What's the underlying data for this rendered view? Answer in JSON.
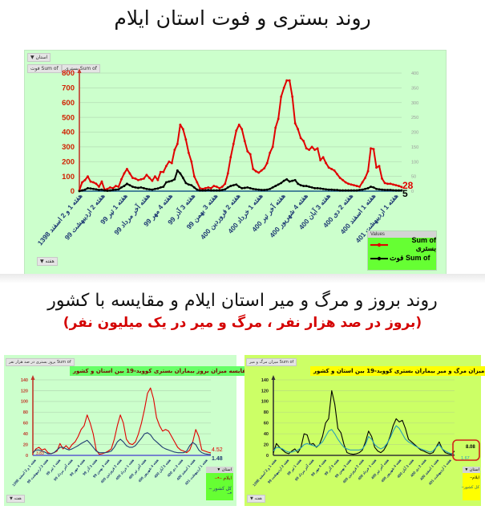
{
  "page": {
    "title_top": "روند بستری و فوت استان ایلام",
    "title_bottom": "روند بروز و مرگ و میر استان ایلام و مقایسه با کشور",
    "subtitle_bottom": "(بروز در صد هزار نفر ، مرگ و میر در یک میلیون نفر)"
  },
  "top_chart": {
    "filter_button": "استان ▼",
    "value_buttons": [
      "Sum of فوت",
      "Sum of بستری"
    ],
    "axis_button": "هفته ▼",
    "legend_header": "Values",
    "legend": [
      "Sum of بستری",
      "Sum of فوت"
    ],
    "end_labels": {
      "hospitalized": "28",
      "deaths": "5"
    }
  },
  "bottom_left_chart": {
    "pivot_button": "Sum of بروز بستری در صد هزار نفر",
    "title": "مقایسه میزان بروز بیماران بستری کووید-19 بین استان و کشور",
    "legend_header": "استان ▼",
    "legend": [
      "ایلام",
      "کل کشور"
    ],
    "axis_button": "هفته ▼",
    "end_labels": {
      "province": "4.52",
      "country": "1.48",
      "start": "3.83"
    }
  },
  "bottom_right_chart": {
    "pivot_button": "Sum of میزان مرگ و میر",
    "title": "مقایسه میزان مرگ و میر بیماران بستری کووید-19 بین استان و کشور",
    "legend_header": "استان ▼",
    "legend": [
      "ایلام",
      "کل کشور"
    ],
    "axis_button": "هفته ▼",
    "end_labels": {
      "province": "8.08",
      "country": "1.67"
    }
  },
  "colors": {
    "red": "#e00000",
    "black": "#000000",
    "navy": "#1f3b73",
    "teal": "#2aa0b8",
    "panel_green": "#ccffcc",
    "panel_yellow": "#ccff66",
    "title_box_green": "#66ff66",
    "title_box_yellow": "#ffff00"
  },
  "chart_data": [
    {
      "type": "line",
      "title": "روند بستری و فوت استان ایلام",
      "xlabel": "هفته",
      "ylabel": "",
      "ylim": [
        0,
        800
      ],
      "y2lim": [
        0,
        400
      ],
      "y_ticks": [
        0,
        100,
        200,
        300,
        400,
        500,
        600,
        700,
        800
      ],
      "y2_ticks": [
        0,
        50,
        100,
        150,
        200,
        250,
        300,
        350,
        400
      ],
      "grid": true,
      "legend_position": "bottom-right",
      "categories": [
        "هفته 1 و 2 اسفند 1398",
        "هفته 2 اردیبهشت 99",
        "هفته 1 تیر 99",
        "هفته آخر مرداد 99",
        "هفته 4 مهر 99",
        "هفته 3 آذر 99",
        "هفته 3 بهمن 99",
        "هفته 2 فروردین 400",
        "هفته 1 خرداد 400",
        "هفته آخر تیر 400",
        "هفته 4 شهریور 400",
        "هفته 3 آبان 400",
        "هفته 2 دی 400",
        "هفته 1 اسفند 400",
        "هفته 1 اردیبهشت 401"
      ],
      "series": [
        {
          "name": "Sum of بستری",
          "color": "#e00000",
          "values": [
            5,
            60,
            75,
            100,
            65,
            60,
            50,
            30,
            65,
            10,
            15,
            25,
            20,
            35,
            30,
            80,
            120,
            150,
            120,
            90,
            85,
            75,
            80,
            85,
            110,
            90,
            70,
            100,
            75,
            130,
            130,
            170,
            200,
            190,
            280,
            320,
            450,
            420,
            350,
            260,
            200,
            100,
            60,
            20,
            15,
            20,
            25,
            20,
            35,
            30,
            20,
            30,
            50,
            120,
            230,
            320,
            410,
            450,
            420,
            340,
            270,
            250,
            150,
            135,
            125,
            140,
            155,
            190,
            260,
            300,
            430,
            490,
            640,
            700,
            750,
            750,
            640,
            460,
            420,
            360,
            340,
            290,
            280,
            300,
            280,
            290,
            210,
            230,
            190,
            160,
            150,
            140,
            115,
            90,
            75,
            60,
            50,
            45,
            40,
            35,
            30,
            60,
            90,
            135,
            290,
            285,
            160,
            170,
            85,
            55,
            50,
            50,
            45,
            40,
            35,
            28
          ]
        },
        {
          "name": "Sum of فوت",
          "color": "#000000",
          "values": [
            0,
            5,
            10,
            20,
            18,
            15,
            12,
            8,
            10,
            5,
            3,
            5,
            8,
            10,
            12,
            25,
            35,
            50,
            40,
            30,
            25,
            22,
            25,
            20,
            15,
            12,
            10,
            15,
            18,
            25,
            30,
            60,
            65,
            70,
            80,
            140,
            120,
            90,
            55,
            45,
            40,
            25,
            10,
            5,
            5,
            5,
            8,
            5,
            5,
            5,
            5,
            8,
            12,
            25,
            35,
            40,
            45,
            30,
            20,
            22,
            25,
            20,
            15,
            12,
            10,
            8,
            8,
            10,
            15,
            25,
            35,
            45,
            55,
            70,
            80,
            65,
            70,
            75,
            50,
            40,
            35,
            35,
            30,
            25,
            20,
            20,
            18,
            15,
            12,
            10,
            10,
            8,
            8,
            5,
            5,
            5,
            5,
            5,
            5,
            5,
            8,
            10,
            15,
            20,
            30,
            25,
            15,
            12,
            10,
            8,
            8,
            8,
            6,
            5,
            5,
            5
          ]
        }
      ]
    },
    {
      "type": "line",
      "title": "مقایسه میزان بروز بیماران بستری کووید-19 بین استان و کشور",
      "ylim": [
        0,
        140
      ],
      "y_ticks": [
        0,
        20,
        40,
        60,
        80,
        100,
        120,
        140
      ],
      "grid": true,
      "legend_position": "bottom-right",
      "categories": [
        "هفته 1 و 2 اسفند 1398",
        "هفته 2 اردیبهشت 99",
        "هفته 1 تیر 99",
        "هفته آخر مرداد 99",
        "هفته 4 مهر 99",
        "هفته 3 آذر 99",
        "هفته 3 بهمن 99",
        "هفته 2 فروردین 400",
        "هفته 1 خرداد 400",
        "هفته آخر تیر 400",
        "هفته 4 شهریور 400",
        "هفته 3 آبان 400",
        "هفته 2 دی 400",
        "هفته 1 اسفند 400",
        "هفته 1 اردیبهشت 401"
      ],
      "series": [
        {
          "name": "ایلام",
          "color": "#e00000",
          "values": [
            3.83,
            12,
            15,
            10,
            12,
            5,
            3,
            5,
            8,
            22,
            12,
            18,
            12,
            20,
            25,
            35,
            48,
            55,
            75,
            60,
            40,
            10,
            2,
            3,
            5,
            8,
            12,
            30,
            55,
            75,
            60,
            30,
            22,
            20,
            25,
            40,
            60,
            85,
            115,
            125,
            105,
            70,
            55,
            45,
            48,
            45,
            35,
            25,
            15,
            10,
            8,
            5,
            10,
            25,
            48,
            35,
            10,
            8,
            6,
            4.52
          ]
        },
        {
          "name": "کل کشور",
          "color": "#1f3b73",
          "values": [
            5,
            10,
            10,
            8,
            6,
            3,
            3,
            5,
            10,
            15,
            15,
            12,
            10,
            12,
            15,
            18,
            22,
            25,
            28,
            22,
            15,
            8,
            5,
            5,
            5,
            6,
            8,
            15,
            25,
            30,
            25,
            18,
            15,
            15,
            18,
            25,
            32,
            40,
            42,
            38,
            30,
            25,
            20,
            15,
            12,
            10,
            8,
            6,
            5,
            5,
            5,
            8,
            18,
            24,
            20,
            10,
            5,
            3,
            2,
            1.48
          ]
        }
      ]
    },
    {
      "type": "line",
      "title": "مقایسه میزان مرگ و میر بیماران بستری کووید-19 بین استان و کشور",
      "ylim": [
        0,
        140
      ],
      "y_ticks": [
        0,
        20,
        40,
        60,
        80,
        100,
        120,
        140
      ],
      "grid": true,
      "legend_position": "bottom-right",
      "categories": [
        "هفته 1 و 2 اسفند 1398",
        "هفته 2 اردیبهشت 99",
        "هفته 1 تیر 99",
        "هفته آخر مرداد 99",
        "هفته 4 مهر 99",
        "هفته 3 آذر 99",
        "هفته 3 بهمن 99",
        "هفته 2 فروردین 400",
        "هفته 1 خرداد 400",
        "هفته آخر تیر 400",
        "هفته 4 شهریور 400",
        "هفته 3 آبان 400",
        "هفته 2 دی 400",
        "هفته 1 اسفند 400",
        "هفته 1 اردیبهشت 401"
      ],
      "annotation": "end values highlighted with red rounded box",
      "series": [
        {
          "name": "ایلام",
          "color": "#000000",
          "values": [
            5,
            22,
            15,
            10,
            5,
            3,
            8,
            12,
            5,
            15,
            40,
            38,
            20,
            22,
            15,
            20,
            35,
            60,
            68,
            120,
            95,
            50,
            42,
            20,
            5,
            3,
            2,
            3,
            5,
            10,
            25,
            45,
            35,
            15,
            8,
            5,
            10,
            20,
            35,
            55,
            68,
            62,
            65,
            50,
            30,
            25,
            20,
            15,
            10,
            8,
            5,
            3,
            5,
            15,
            25,
            12,
            5,
            3,
            2,
            8.08
          ]
        },
        {
          "name": "کل کشور",
          "color": "#2aa0b8",
          "values": [
            8,
            15,
            14,
            12,
            8,
            6,
            6,
            8,
            10,
            14,
            20,
            22,
            20,
            18,
            16,
            20,
            25,
            35,
            45,
            48,
            40,
            30,
            22,
            15,
            12,
            10,
            10,
            10,
            10,
            12,
            20,
            35,
            30,
            20,
            15,
            12,
            15,
            22,
            32,
            45,
            55,
            50,
            40,
            30,
            25,
            22,
            18,
            15,
            12,
            10,
            8,
            6,
            8,
            15,
            20,
            12,
            8,
            5,
            3,
            1.67
          ]
        }
      ]
    }
  ]
}
